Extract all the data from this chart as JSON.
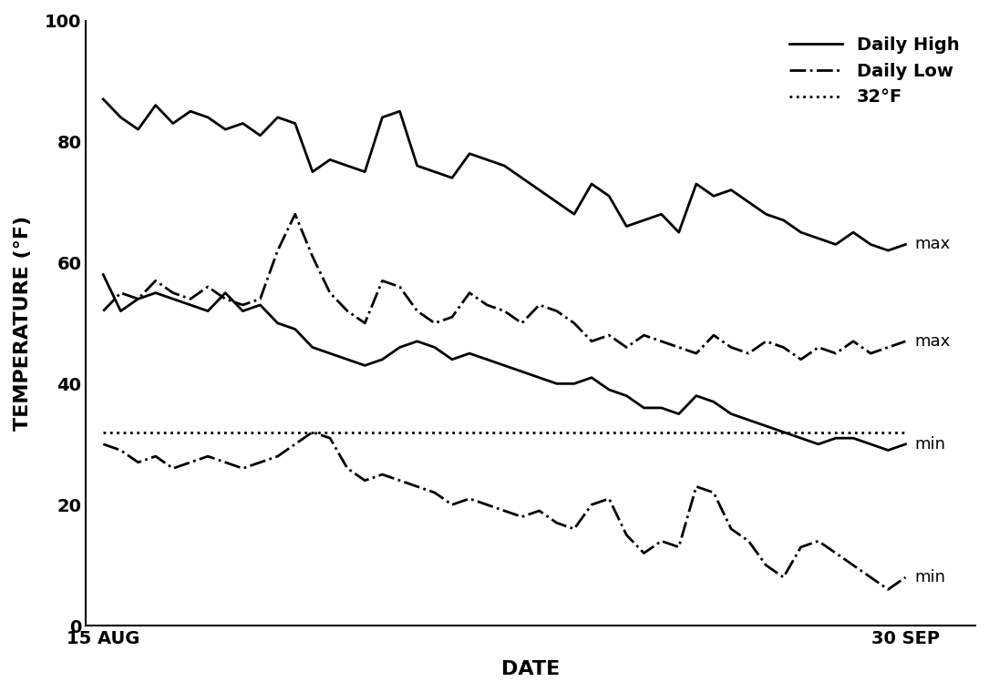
{
  "title": "",
  "xlabel": "DATE",
  "ylabel": "TEMPERATURE (°F)",
  "xlim_days": 47,
  "ylim": [
    0,
    100
  ],
  "yticks": [
    0,
    20,
    40,
    60,
    80,
    100
  ],
  "xtick_labels": [
    "15 AUG",
    "30 SEP"
  ],
  "xtick_positions": [
    0,
    46
  ],
  "freeze_line": 32,
  "background_color": "#ffffff",
  "line_color": "#000000",
  "daily_high_max": [
    87,
    84,
    82,
    86,
    83,
    85,
    84,
    82,
    83,
    81,
    84,
    83,
    75,
    77,
    76,
    75,
    84,
    85,
    76,
    75,
    74,
    78,
    77,
    76,
    74,
    72,
    70,
    68,
    73,
    71,
    66,
    67,
    68,
    65,
    73,
    71,
    72,
    70,
    68,
    67,
    65,
    64,
    63,
    65,
    63,
    62,
    63
  ],
  "daily_high_min": [
    58,
    52,
    54,
    55,
    54,
    53,
    52,
    55,
    52,
    53,
    50,
    49,
    46,
    45,
    44,
    43,
    44,
    46,
    47,
    46,
    44,
    45,
    44,
    43,
    42,
    41,
    40,
    40,
    41,
    39,
    38,
    36,
    36,
    35,
    38,
    37,
    35,
    34,
    33,
    32,
    31,
    30,
    31,
    31,
    30,
    29,
    30
  ],
  "daily_low_max": [
    52,
    55,
    54,
    57,
    55,
    54,
    56,
    54,
    53,
    54,
    62,
    68,
    61,
    55,
    52,
    50,
    57,
    56,
    52,
    50,
    51,
    55,
    53,
    52,
    50,
    53,
    52,
    50,
    47,
    48,
    46,
    48,
    47,
    46,
    45,
    48,
    46,
    45,
    47,
    46,
    44,
    46,
    45,
    47,
    45,
    46,
    47
  ],
  "daily_low_min": [
    30,
    29,
    27,
    28,
    26,
    27,
    28,
    27,
    26,
    27,
    28,
    30,
    32,
    31,
    26,
    24,
    25,
    24,
    23,
    22,
    20,
    21,
    20,
    19,
    18,
    19,
    17,
    16,
    20,
    21,
    15,
    12,
    14,
    13,
    23,
    22,
    16,
    14,
    10,
    8,
    13,
    14,
    12,
    10,
    8,
    6,
    8
  ],
  "label_high": "Daily High",
  "label_low": "Daily Low",
  "label_freeze": "32°F",
  "annotation_high_max": "max",
  "annotation_high_min": "min",
  "annotation_low_max": "max",
  "annotation_low_min": "min"
}
